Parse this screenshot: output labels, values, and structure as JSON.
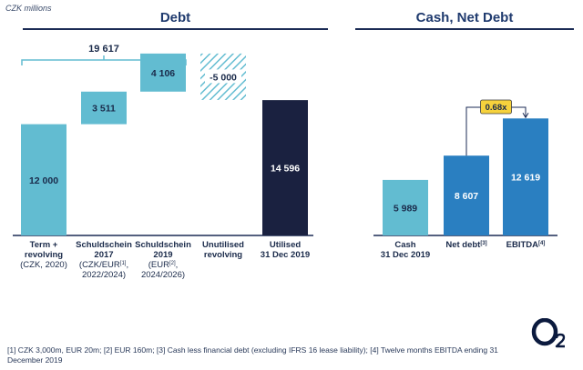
{
  "unit_label": "CZK millions",
  "debt_title": "Debt",
  "cash_title": "Cash, Net Debt",
  "chart_data": {
    "type": "waterfall-bar",
    "ylim": [
      0,
      20000
    ],
    "total_bracket": {
      "label": "19 617",
      "from": 0,
      "to": 19617
    },
    "bars": [
      {
        "id": "term",
        "label_lines": [
          "Term +",
          "revolving"
        ],
        "sub_lines": [
          "(CZK, 2020)"
        ],
        "base": 0,
        "value": 12000,
        "display": "12 000",
        "color": "#62bcd1",
        "text_color": "#1a2a4a",
        "hatched": false
      },
      {
        "id": "schuld2017",
        "label_lines": [
          "Schuldschein",
          "2017"
        ],
        "sub_lines": [
          "(CZK/EUR[1],",
          "2022/2024)"
        ],
        "base": 12000,
        "value": 3511,
        "display": "3 511",
        "color": "#62bcd1",
        "text_color": "#1a2a4a",
        "hatched": false
      },
      {
        "id": "schuld2019",
        "label_lines": [
          "Schuldschein",
          "2019"
        ],
        "sub_lines": [
          "(EUR[2],",
          "2024/2026)"
        ],
        "base": 15511,
        "value": 4106,
        "display": "4 106",
        "color": "#62bcd1",
        "text_color": "#1a2a4a",
        "hatched": false
      },
      {
        "id": "unutilised",
        "label_lines": [
          "Unutilised",
          "revolving"
        ],
        "sub_lines": [],
        "base": 14617,
        "value": 5000,
        "display": "-5 000",
        "color": "#62bcd1",
        "text_color": "#1a2a4a",
        "hatched": true
      },
      {
        "id": "utilised",
        "label_lines": [
          "Utilised",
          "31 Dec 2019"
        ],
        "sub_lines": [],
        "base": 0,
        "value": 14596,
        "display": "14 596",
        "color": "#1a2140",
        "text_color": "#ffffff",
        "hatched": false
      },
      {
        "id": "cash",
        "label_lines": [
          "Cash",
          "31 Dec 2019"
        ],
        "sub_lines": [],
        "base": 0,
        "value": 5989,
        "display": "5 989",
        "color": "#62bcd1",
        "text_color": "#1a2a4a",
        "hatched": false
      },
      {
        "id": "netdebt",
        "label_lines": [
          "Net debt[3]"
        ],
        "sub_lines": [],
        "base": 0,
        "value": 8607,
        "display": "8 607",
        "color": "#2a7fc1",
        "text_color": "#ffffff",
        "hatched": false
      },
      {
        "id": "ebitda",
        "label_lines": [
          "EBITDA[4]"
        ],
        "sub_lines": [],
        "base": 0,
        "value": 12619,
        "display": "12 619",
        "color": "#2a7fc1",
        "text_color": "#ffffff",
        "hatched": false
      }
    ],
    "ratio": {
      "label": "0.68x",
      "from": "netdebt",
      "to": "ebitda"
    }
  },
  "footnote": "[1] CZK 3,000m, EUR 20m; [2] EUR 160m; [3] Cash less financial debt (excluding IFRS 16 lease liability); [4] Twelve months EBITDA ending 31 December 2019",
  "logo_text": "O2",
  "colors": {
    "navy": "#1b2b55",
    "light_blue": "#62bcd1",
    "mid_blue": "#2a7fc1",
    "dark_navy": "#1a2140",
    "ratio_box": "#f6d23c"
  }
}
